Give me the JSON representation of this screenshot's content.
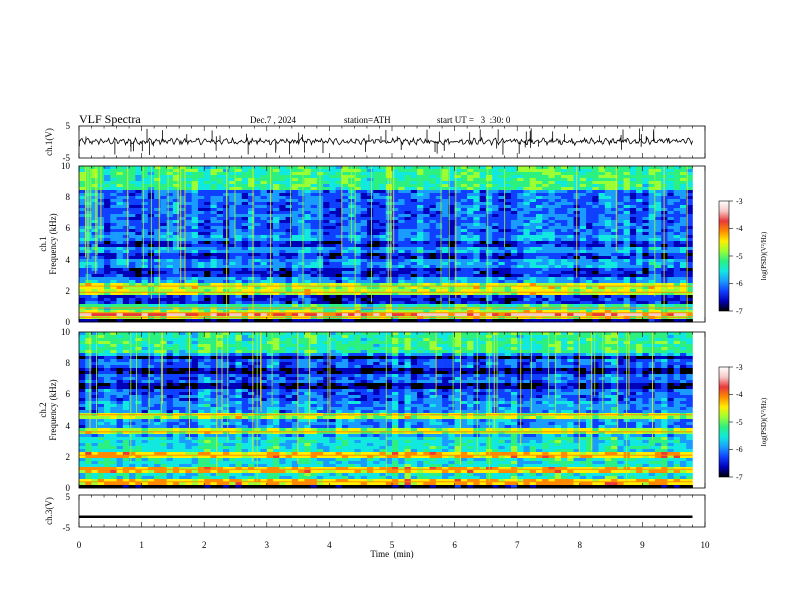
{
  "header": {
    "title": "VLF Spectra",
    "date": "Dec.7  , 2024",
    "station": "station=ATH",
    "start_ut": "start UT =   3  :30: 0"
  },
  "chart_data": [
    {
      "id": "ch1-waveform",
      "type": "line",
      "ylabel": "ch.1(V)",
      "ylim": [
        -5,
        5
      ],
      "yticks": [
        "5",
        "-5"
      ],
      "xlim": [
        0,
        10
      ],
      "trace_color": "#000000",
      "trace_level": 0.2,
      "data_end_min": 9.8
    },
    {
      "id": "ch1-spectrogram",
      "type": "heatmap",
      "ylabel_top": "ch.1",
      "ylabel": "Frequency  (kHz)",
      "ylim": [
        0,
        10
      ],
      "yticks": [
        "0",
        "2",
        "4",
        "6",
        "8",
        "10"
      ],
      "xlim": [
        0,
        10
      ],
      "data_end_min": 9.8,
      "bright_bands_khz": [
        0.3,
        0.6,
        0.9,
        1.9,
        2.3
      ],
      "dark_bands_khz": [
        1.1,
        1.5,
        3.2,
        4.2,
        5.0
      ],
      "colorbar": {
        "label": "log(PSD)(V²/Hz)",
        "range": [
          -7,
          -3
        ],
        "ticks": [
          "-3",
          "-4",
          "-5",
          "-6",
          "-7"
        ]
      }
    },
    {
      "id": "ch2-spectrogram",
      "type": "heatmap",
      "ylabel_top": "ch.2",
      "ylabel": "Frequency  (kHz)",
      "ylim": [
        0,
        10
      ],
      "yticks": [
        "0",
        "2",
        "4",
        "6",
        "8",
        "10"
      ],
      "xlim": [
        0,
        10
      ],
      "data_end_min": 9.8,
      "bright_bands_khz": [
        0.4,
        1.2,
        2.1,
        3.6,
        4.7
      ],
      "dark_bands_khz": [
        6.5,
        7.5,
        8.5
      ],
      "colorbar": {
        "label": "log(PSD)(V²/Hz)",
        "range": [
          -7,
          -3
        ],
        "ticks": [
          "-3",
          "-4",
          "-5",
          "-6",
          "-7"
        ]
      }
    },
    {
      "id": "ch3-waveform",
      "type": "line",
      "ylabel": "ch.3(V)",
      "ylim": [
        -5,
        5
      ],
      "yticks": [
        "5",
        "-5"
      ],
      "xlim": [
        0,
        10
      ],
      "trace_color": "#000000",
      "trace_level": -1.8,
      "data_end_min": 9.8
    }
  ],
  "x_axis": {
    "label": "Time  (min)",
    "ticks": [
      "0",
      "1",
      "2",
      "3",
      "4",
      "5",
      "6",
      "7",
      "8",
      "9",
      "10"
    ]
  },
  "colormap": [
    "#ffffff",
    "#f7c8c8",
    "#e83a3a",
    "#ff8a00",
    "#ffee00",
    "#9bff33",
    "#2cf080",
    "#10e8e0",
    "#1a9cff",
    "#1040ff",
    "#0000b8",
    "#000000"
  ]
}
